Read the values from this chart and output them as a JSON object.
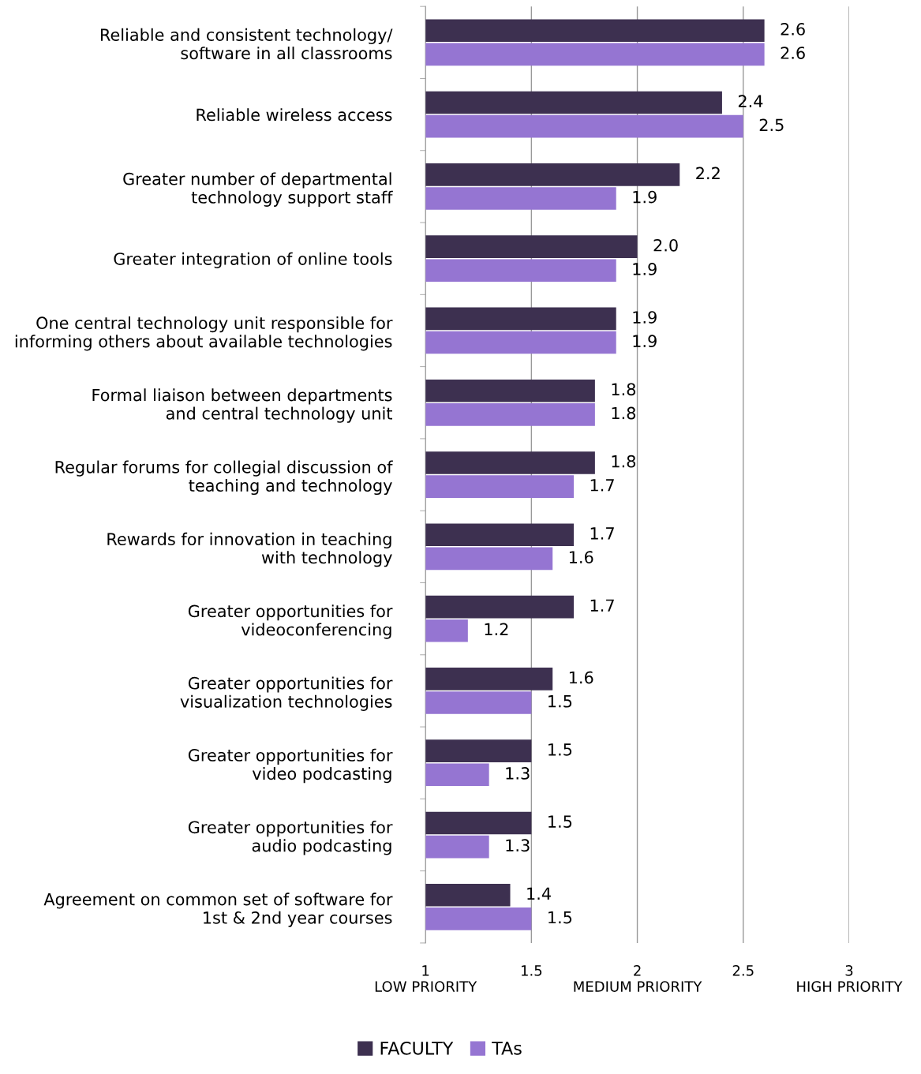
{
  "chart_data": {
    "type": "bar",
    "orientation": "horizontal",
    "categories": [
      "Reliable and consistent technology/\nsoftware in all classrooms",
      "Reliable wireless access",
      "Greater number of departmental\ntechnology support staff",
      "Greater integration of online tools",
      "One central technology unit responsible for\ninforming others about available technologies",
      "Formal liaison between departments\nand central technology unit",
      "Regular forums for collegial discussion of\nteaching and technology",
      "Rewards for innovation in teaching\nwith technology",
      "Greater opportunities for\nvideoconferencing",
      "Greater opportunities for\nvisualization technologies",
      "Greater opportunities for\nvideo podcasting",
      "Greater opportunities for\naudio podcasting",
      "Agreement on common set of software for\n1st & 2nd year courses"
    ],
    "series": [
      {
        "name": "FACULTY",
        "color": "#3d3050",
        "values": [
          2.6,
          2.4,
          2.2,
          2.0,
          1.9,
          1.8,
          1.8,
          1.7,
          1.7,
          1.6,
          1.5,
          1.5,
          1.4
        ],
        "value_labels": [
          "2.6",
          "2.4",
          "2.2",
          "2.0",
          "1.9",
          "1.8",
          "1.8",
          "1.7",
          "1.7",
          "1.6",
          "1.5",
          "1.5",
          "1.4"
        ]
      },
      {
        "name": "TAs",
        "color": "#9575d2",
        "values": [
          2.6,
          2.5,
          1.9,
          1.9,
          1.9,
          1.8,
          1.7,
          1.6,
          1.2,
          1.5,
          1.3,
          1.3,
          1.5
        ],
        "value_labels": [
          "2.6",
          "2.5",
          "1.9",
          "1.9",
          "1.9",
          "1.8",
          "1.7",
          "1.6",
          "1.2",
          "1.5",
          "1.3",
          "1.3",
          "1.5"
        ]
      }
    ],
    "xlim": [
      1,
      3
    ],
    "xticks": [
      {
        "value": 1,
        "label": "1\nLOW PRIORITY"
      },
      1.5,
      {
        "value": 2,
        "label": "2\nMEDIUM PRIORITY"
      },
      2.5,
      {
        "value": 3,
        "label": "3\nHIGH PRIORITY"
      }
    ],
    "grid": "x",
    "legend": "bottom"
  }
}
